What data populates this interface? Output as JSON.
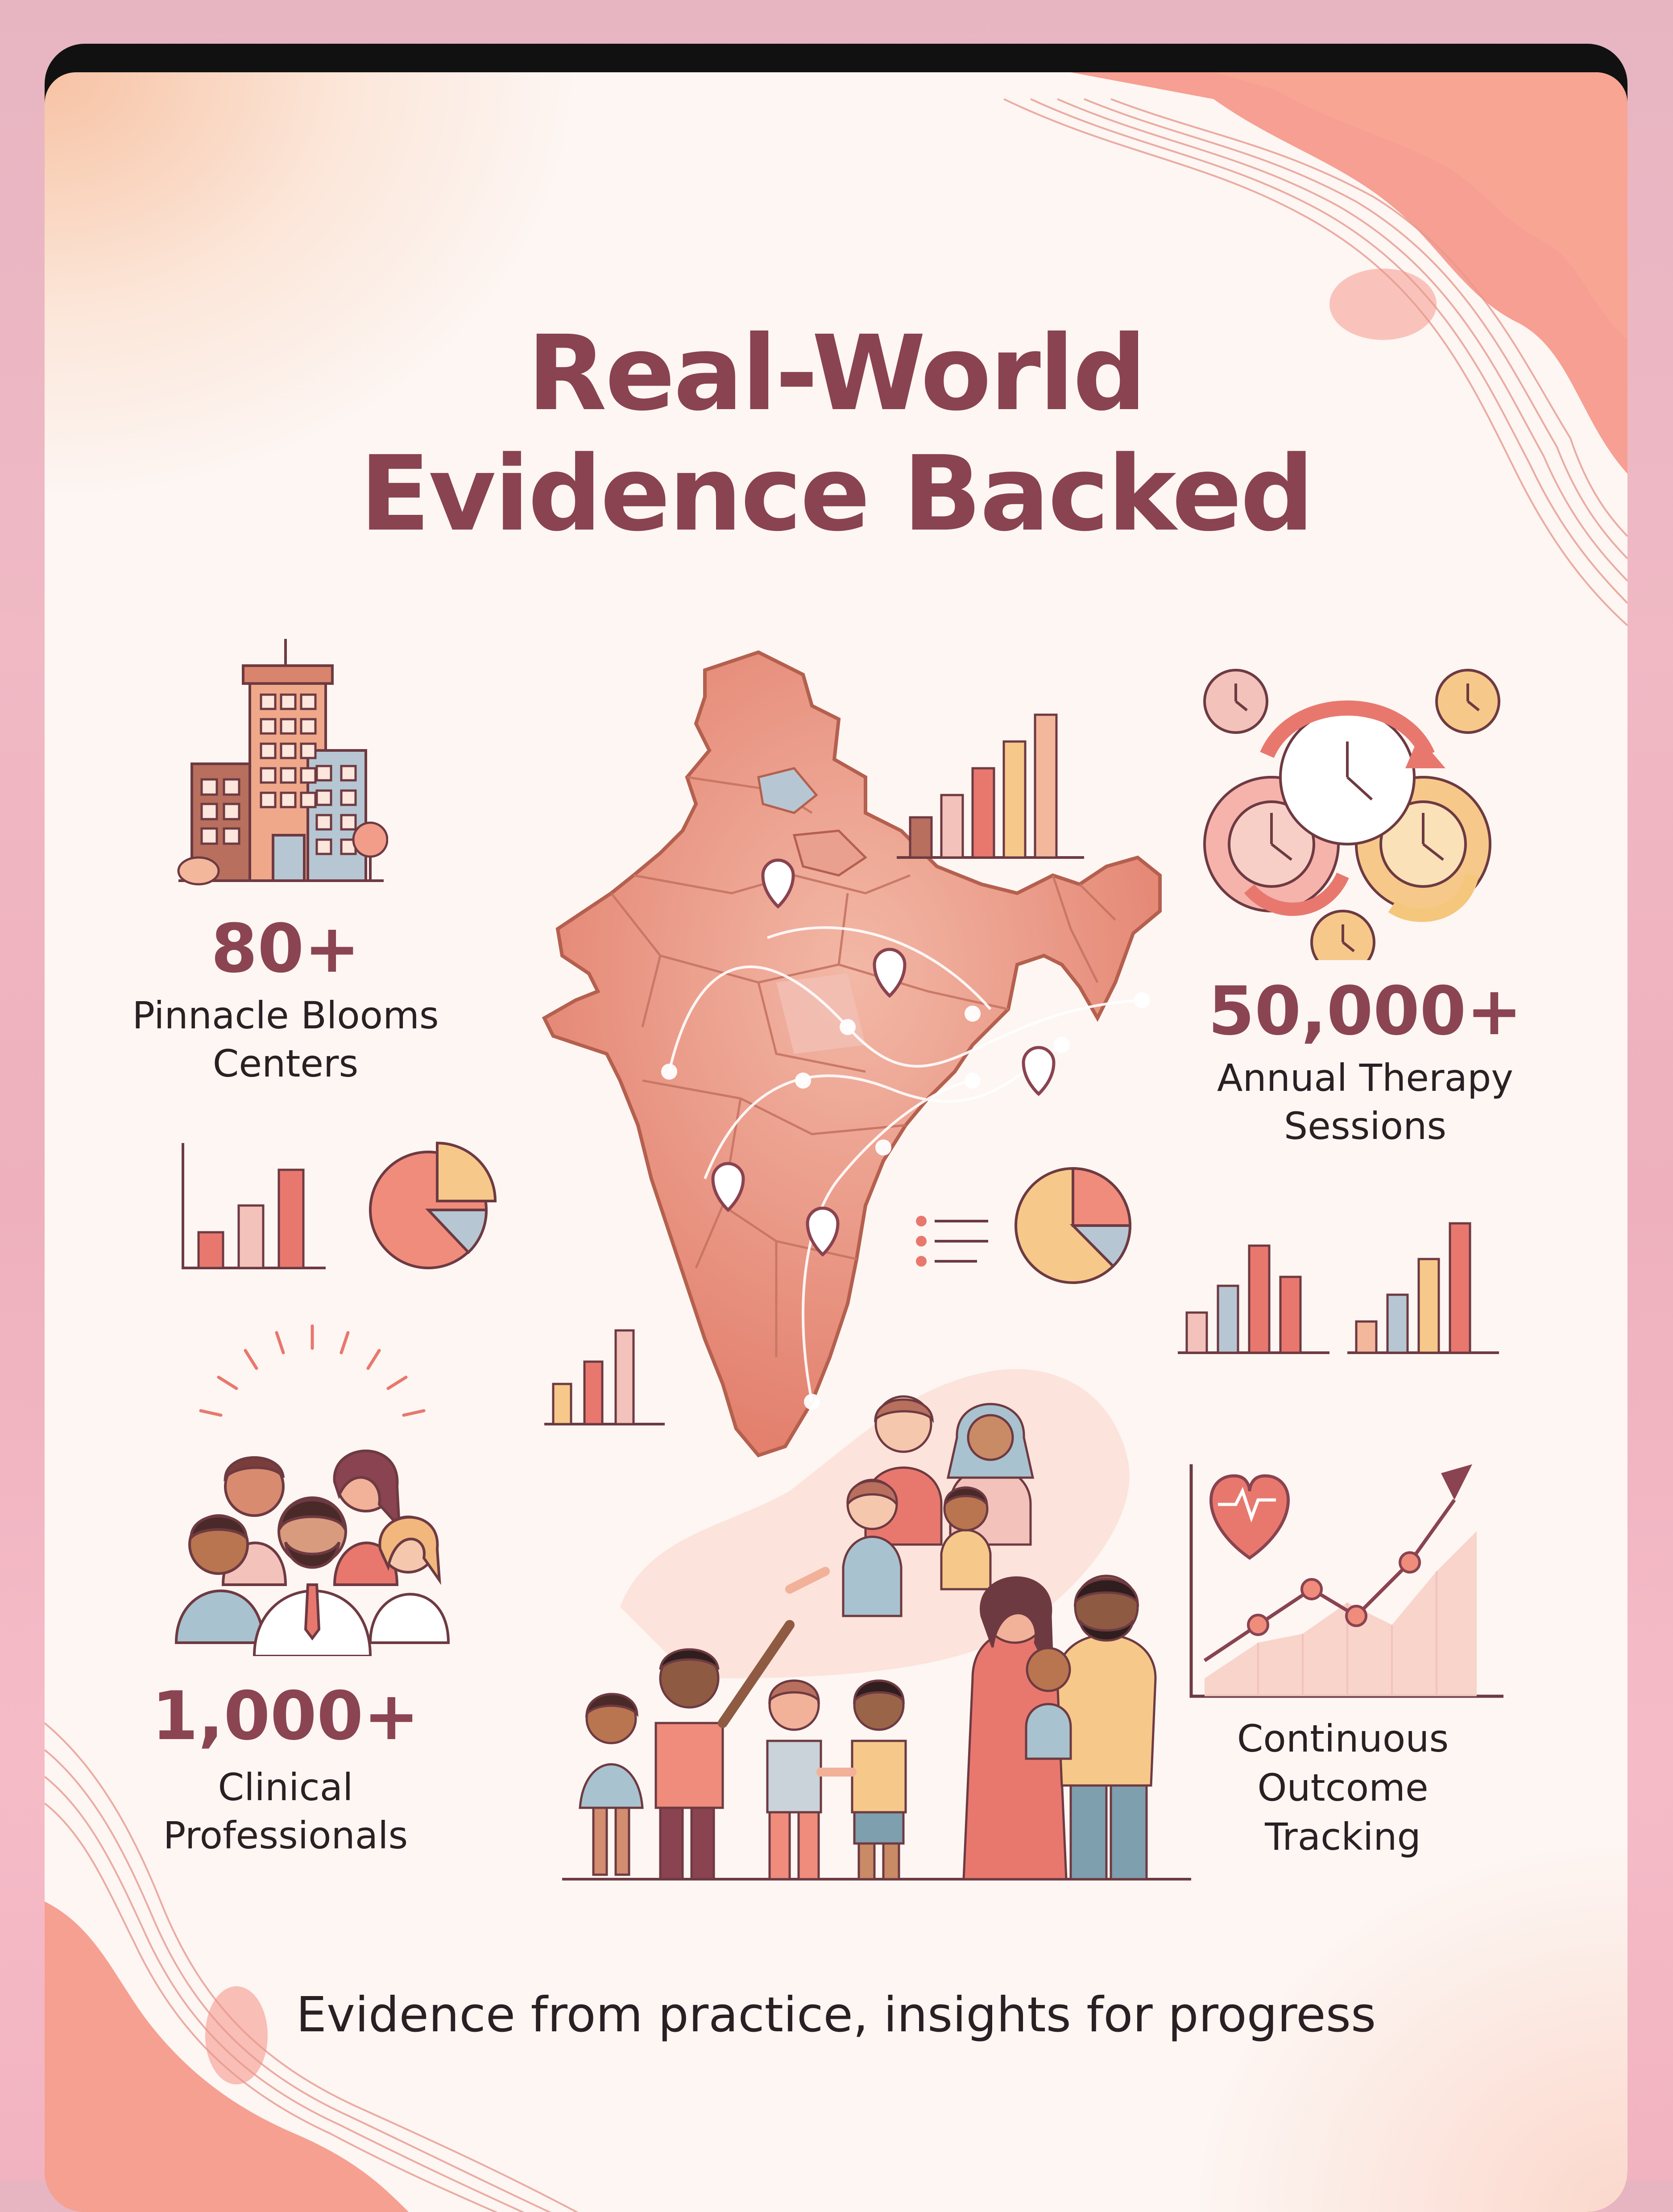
{
  "title": {
    "line1": "Real-World",
    "line2": "Evidence Backed"
  },
  "stats": {
    "centers": {
      "value": "80+",
      "label_line1": "Pinnacle Blooms",
      "label_line2": "Centers"
    },
    "sessions": {
      "value": "50,000+",
      "label_line1": "Annual Therapy",
      "label_line2": "Sessions"
    },
    "professionals": {
      "value": "1,000+",
      "label_line1": "Clinical",
      "label_line2": "Professionals"
    },
    "tracking": {
      "label_line1": "Continuous",
      "label_line2": "Outcome",
      "label_line3": "Tracking"
    }
  },
  "tagline": "Evidence from practice, insights for progress",
  "colors": {
    "title": "#8a4350",
    "stat_value": "#8b4452",
    "coral": "#e8786e",
    "salmon": "#f2a48f",
    "peach": "#f6c39c",
    "blush": "#f3c2bb",
    "slate_blue": "#a9bcc7",
    "gold": "#f4c77c",
    "outline": "#6e3a42"
  },
  "icons": [
    "buildings-icon",
    "india-map-icon",
    "bar-chart-icon",
    "pie-chart-icon",
    "cycle-clocks-icon",
    "group-professionals-icon",
    "families-icon",
    "heart-pulse-icon",
    "trend-line-chart-icon",
    "location-pin-icon",
    "list-icon"
  ]
}
